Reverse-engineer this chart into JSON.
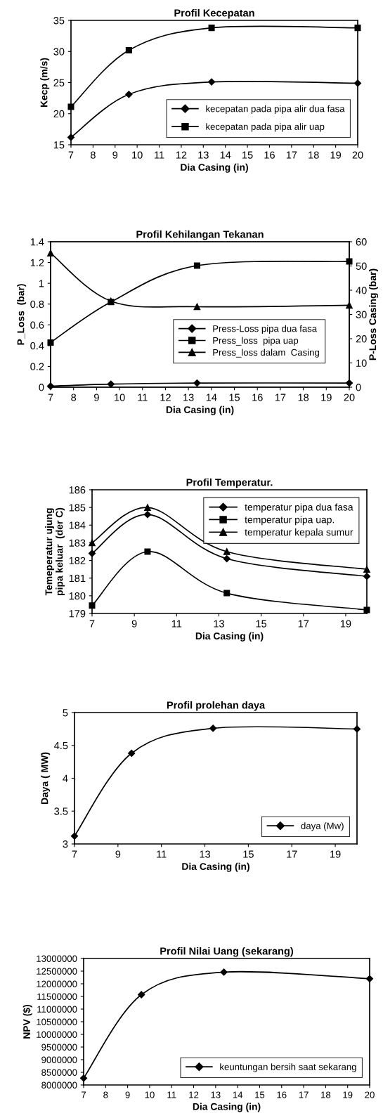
{
  "chart_data": [
    {
      "type": "line",
      "title": "Profil Kecepatan",
      "xlabel": "Dia Casing (in)",
      "ylabel": "Kecp (m/s)",
      "x": [
        7,
        9.625,
        13.375,
        20
      ],
      "xlim": [
        7,
        20
      ],
      "xticks": [
        7,
        8,
        9,
        10,
        11,
        12,
        13,
        14,
        15,
        16,
        17,
        18,
        19,
        20
      ],
      "ylim": [
        15,
        35
      ],
      "yticks": [
        15,
        20,
        25,
        30,
        35
      ],
      "legend": "lower right",
      "series": [
        {
          "name": "kecepatan pada pipa alir dua fasa",
          "color": "#000000",
          "marker": "diamond",
          "values": [
            16.2,
            23.1,
            25.1,
            24.9
          ]
        },
        {
          "name": "kecepatan pada pipa alir uap",
          "color": "#000000",
          "marker": "square",
          "values": [
            21.1,
            30.2,
            33.8,
            33.8
          ]
        }
      ]
    },
    {
      "type": "line",
      "title": "Profil Kehilangan Tekanan",
      "xlabel": "Dia Casing (in)",
      "ylabel": "P_Loss  (bar)",
      "y2label": "P-Loss Casing (bar)",
      "x": [
        7,
        9.625,
        13.375,
        20
      ],
      "xlim": [
        7,
        20
      ],
      "xticks": [
        7,
        8,
        9,
        10,
        11,
        12,
        13,
        14,
        15,
        16,
        17,
        18,
        19,
        20
      ],
      "ylim": [
        0,
        1.4
      ],
      "yticks": [
        0,
        0.2,
        0.4,
        0.6,
        0.8,
        1,
        1.2,
        1.4
      ],
      "y2lim": [
        0,
        60
      ],
      "y2ticks": [
        0,
        10,
        20,
        30,
        40,
        50,
        60
      ],
      "legend": "lower right",
      "series": [
        {
          "name": "Press-Loss pipa dua fasa",
          "color": "#000000",
          "marker": "diamond",
          "values": [
            0.01,
            0.03,
            0.04,
            0.04
          ]
        },
        {
          "name": "Press_loss  pipa uap",
          "color": "#000000",
          "marker": "square",
          "values": [
            0.43,
            0.82,
            1.17,
            1.21
          ]
        },
        {
          "name": "Press_loss dalam  Casing",
          "color": "#000000",
          "marker": "triangle",
          "axis": "y2",
          "values": [
            55.3,
            35.5,
            33.2,
            33.8
          ]
        }
      ]
    },
    {
      "type": "line",
      "title": "Profil Temperatur.",
      "xlabel": "Dia Casing (in)",
      "ylabel": "Temeperatur ujung\npipa keluar  (der C)",
      "x": [
        7,
        9.625,
        13.375,
        20
      ],
      "xlim": [
        7,
        20
      ],
      "xticks": [
        7,
        9,
        11,
        13,
        15,
        17,
        19
      ],
      "ylim": [
        179,
        186
      ],
      "yticks": [
        179,
        180,
        181,
        182,
        183,
        184,
        185,
        186
      ],
      "legend": "upper right",
      "series": [
        {
          "name": "temperatur pipa dua fasa",
          "color": "#000000",
          "marker": "diamond",
          "values": [
            182.4,
            184.6,
            182.1,
            181.1
          ]
        },
        {
          "name": "temperatur pipa uap.",
          "color": "#000000",
          "marker": "square",
          "values": [
            179.45,
            182.5,
            180.15,
            179.2
          ]
        },
        {
          "name": "temperatur kepala sumur",
          "color": "#000000",
          "marker": "triangle",
          "values": [
            183.0,
            185.0,
            182.5,
            181.5
          ]
        }
      ]
    },
    {
      "type": "line",
      "title": "Profil prolehan daya",
      "xlabel": "Dia Casing (in)",
      "ylabel": "Daya ( MW)",
      "x": [
        7,
        9.625,
        13.375,
        20
      ],
      "xlim": [
        7,
        20
      ],
      "xticks": [
        7,
        9,
        11,
        13,
        15,
        17,
        19
      ],
      "ylim": [
        3,
        5
      ],
      "yticks": [
        3,
        3.5,
        4,
        4.5,
        5
      ],
      "legend": "lower right",
      "series": [
        {
          "name": "daya (Mw)",
          "color": "#000000",
          "marker": "diamond",
          "values": [
            3.12,
            4.38,
            4.76,
            4.75
          ]
        }
      ]
    },
    {
      "type": "line",
      "title": "Profil Nilai Uang (sekarang)",
      "xlabel": "Dia Casing (in)",
      "ylabel": "NPV ($)",
      "x": [
        7,
        9.625,
        13.375,
        20
      ],
      "xlim": [
        7,
        20
      ],
      "xticks": [
        7,
        8,
        9,
        10,
        11,
        12,
        13,
        14,
        15,
        16,
        17,
        18,
        19,
        20
      ],
      "ylim": [
        8000000,
        13000000
      ],
      "yticks": [
        8000000,
        8500000,
        9000000,
        9500000,
        10000000,
        10500000,
        11000000,
        11500000,
        12000000,
        12500000,
        13000000
      ],
      "legend": "lower right",
      "series": [
        {
          "name": "keuntungan bersih saat sekarang",
          "color": "#000000",
          "marker": "diamond",
          "values": [
            8270000,
            11570000,
            12460000,
            12200000
          ]
        }
      ]
    }
  ]
}
